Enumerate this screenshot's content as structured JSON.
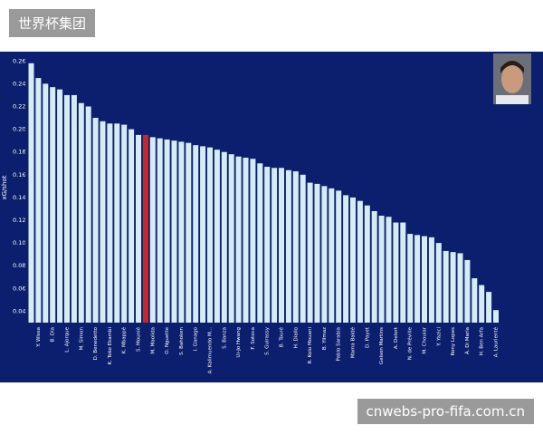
{
  "header": {
    "title": "世界杯集团"
  },
  "footer": {
    "watermark": "cnwebs-pro-fifa.com.cn"
  },
  "chart_data": {
    "type": "bar",
    "ylabel": "xG/shot",
    "categories": [
      null,
      "Y. Wissa",
      null,
      "B. Dia",
      null,
      "L. Ajorque",
      null,
      "M. Simon",
      null,
      "D. Benedetto",
      null,
      "K. Toko Ekambi",
      null,
      "K. Mbappé",
      null,
      "S. Mounié",
      null,
      "M. Maolida",
      null,
      "O. Nguette",
      null,
      "S. Bahoken",
      null,
      "I. Ganago",
      null,
      "A. Kalimuendo M...",
      null,
      "S. Banza",
      null,
      "Ui-Jo Hwang",
      null,
      "F. Sotoca",
      null,
      "S. Guirassy",
      null,
      "B. Touré",
      null,
      "H. Diallo",
      null,
      "R. Kolo Mouani",
      null,
      "B. Yilmaz",
      null,
      "Pablo Sarabia",
      null,
      "Mama Baldé",
      null,
      "D. Payet",
      null,
      "Gelson Martins",
      null,
      "A. Delort",
      null,
      "N. de Préville",
      null,
      "M. Chouiar",
      null,
      "Y. Yazici",
      null,
      "Rony Lopes",
      null,
      "Á. Di María",
      null,
      "H. Ben Arfa",
      null,
      "A. Laurienté"
    ],
    "values": [
      0.258,
      0.245,
      0.24,
      0.237,
      0.235,
      0.23,
      0.23,
      0.223,
      0.22,
      0.21,
      0.207,
      0.205,
      0.205,
      0.204,
      0.2,
      0.195,
      0.195,
      0.193,
      0.192,
      0.191,
      0.19,
      0.189,
      0.188,
      0.186,
      0.185,
      0.184,
      0.182,
      0.18,
      0.178,
      0.176,
      0.175,
      0.174,
      0.17,
      0.167,
      0.166,
      0.166,
      0.164,
      0.163,
      0.16,
      0.153,
      0.152,
      0.15,
      0.148,
      0.146,
      0.142,
      0.14,
      0.137,
      0.133,
      0.128,
      0.124,
      0.123,
      0.118,
      0.118,
      0.108,
      0.107,
      0.106,
      0.105,
      0.1,
      0.093,
      0.092,
      0.091,
      0.085,
      0.069,
      0.063,
      0.057,
      0.041
    ],
    "colors": [
      "#d6ecf5",
      "#d6ecf5",
      "#d6ecf5",
      "#d6ecf5",
      "#d6ecf5",
      "#d6ecf5",
      "#d6ecf5",
      "#d6ecf5",
      "#d6ecf5",
      "#d6ecf5",
      "#d6ecf5",
      "#d6ecf5",
      "#d6ecf5",
      "#d6ecf5",
      "#d6ecf5",
      "#d6ecf5",
      "#c8262b",
      "#d6ecf5",
      "#d6ecf5",
      "#d6ecf5",
      "#d6ecf5",
      "#d6ecf5",
      "#d6ecf5",
      "#d6ecf5",
      "#d6ecf5",
      "#d6ecf5",
      "#d6ecf5",
      "#d6ecf5",
      "#d6ecf5",
      "#d6ecf5",
      "#d6ecf5",
      "#d6ecf5",
      "#d6ecf5",
      "#d6ecf5",
      "#d6ecf5",
      "#d6ecf5",
      "#d6ecf5",
      "#d6ecf5",
      "#d6ecf5",
      "#d6ecf5",
      "#d6ecf5",
      "#d6ecf5",
      "#d6ecf5",
      "#d6ecf5",
      "#d6ecf5",
      "#d6ecf5",
      "#d6ecf5",
      "#d6ecf5",
      "#d6ecf5",
      "#d6ecf5",
      "#d6ecf5",
      "#d6ecf5",
      "#d6ecf5",
      "#d6ecf5",
      "#d6ecf5",
      "#d6ecf5",
      "#d6ecf5",
      "#d6ecf5",
      "#d6ecf5",
      "#d6ecf5",
      "#d6ecf5",
      "#d6ecf5",
      "#d6ecf5",
      "#d6ecf5",
      "#d6ecf5",
      "#d6ecf5"
    ],
    "ylim": [
      0.03,
      0.265
    ],
    "yticks": [
      0.04,
      0.06,
      0.08,
      {
        "value": 0.1,
        "label": "0.10"
      },
      0.12,
      0.14,
      0.16,
      0.18,
      {
        "value": 0.2,
        "label": "0.20"
      },
      0.22,
      0.24,
      0.26
    ],
    "grid": false
  }
}
